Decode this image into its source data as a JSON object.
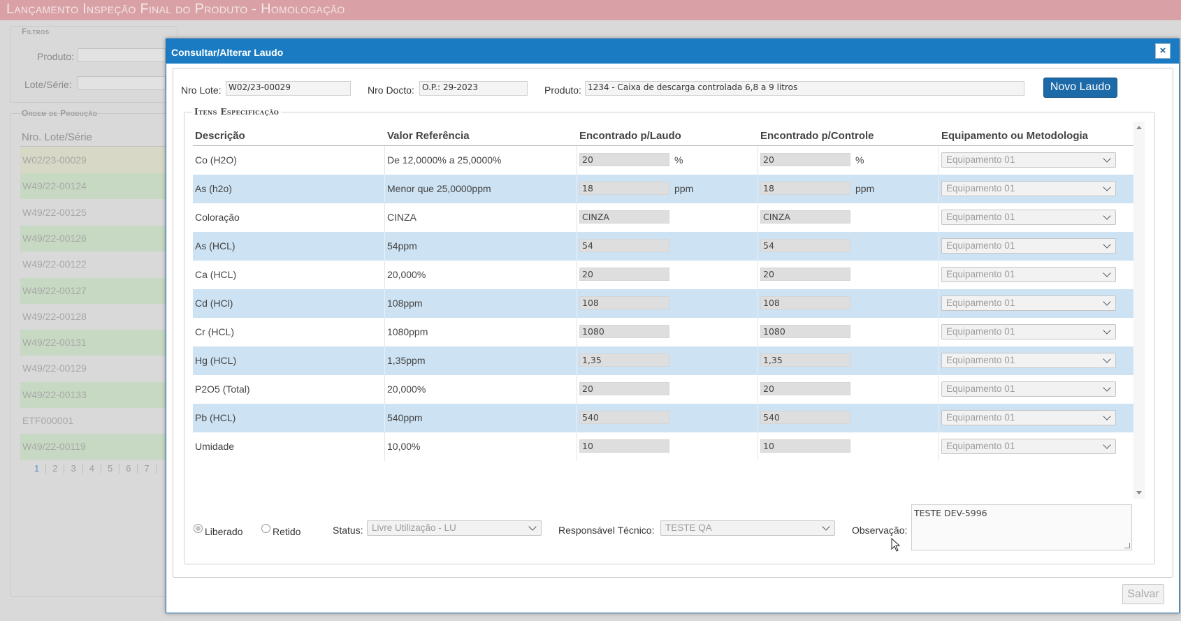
{
  "page": {
    "title": "Lançamento Inspeção Final do Produto  - Homologação",
    "filters_legend": "Filtros",
    "produto_label": "Produto:",
    "lote_label": "Lote/Série:",
    "op_legend": "Ordem de Produção",
    "op_column": "Nro. Lote/Série",
    "op_rows": [
      "W02/23-00029",
      "W49/22-00124",
      "W49/22-00125",
      "W49/22-00126",
      "W49/22-00122",
      "W49/22-00127",
      "W49/22-00128",
      "W49/22-00131",
      "W49/22-00129",
      "W49/22-00133",
      "ETF000001",
      "W49/22-00119"
    ],
    "pager": [
      "1",
      "2",
      "3",
      "4",
      "5",
      "6",
      "7"
    ]
  },
  "modal": {
    "title": "Consultar/Alterar Laudo",
    "close": "×",
    "nro_lote_label": "Nro Lote:",
    "nro_lote_value": "W02/23-00029",
    "nro_docto_label": "Nro Docto:",
    "nro_docto_value": "O.P.: 29-2023",
    "produto_label": "Produto:",
    "produto_value": "1234 - Caixa de descarga controlada 6,8 a 9 litros",
    "novo_laudo": "Novo Laudo",
    "spec_legend": "Itens Especificação",
    "columns": [
      "Descrição",
      "Valor Referência",
      "Encontrado p/Laudo",
      "Encontrado p/Controle",
      "Equipamento ou Metodologia"
    ],
    "rows": [
      {
        "descricao": "Co (H2O)",
        "referencia": "De 12,0000% a 25,0000%",
        "laudo": "20",
        "controle": "20",
        "unidade": "%",
        "equipamento": "Equipamento 01"
      },
      {
        "descricao": "As (h2o)",
        "referencia": "Menor que 25,0000ppm",
        "laudo": "18",
        "controle": "18",
        "unidade": "ppm",
        "equipamento": "Equipamento 01"
      },
      {
        "descricao": "Coloração",
        "referencia": "CINZA",
        "laudo": "CINZA",
        "controle": "CINZA",
        "unidade": "",
        "equipamento": "Equipamento 01"
      },
      {
        "descricao": "As (HCL)",
        "referencia": "54ppm",
        "laudo": "54",
        "controle": "54",
        "unidade": "",
        "equipamento": "Equipamento 01"
      },
      {
        "descricao": "Ca (HCL)",
        "referencia": "20,000%",
        "laudo": "20",
        "controle": "20",
        "unidade": "",
        "equipamento": "Equipamento 01"
      },
      {
        "descricao": "Cd (HCl)",
        "referencia": "108ppm",
        "laudo": "108",
        "controle": "108",
        "unidade": "",
        "equipamento": "Equipamento 01"
      },
      {
        "descricao": "Cr (HCL)",
        "referencia": "1080ppm",
        "laudo": "1080",
        "controle": "1080",
        "unidade": "",
        "equipamento": "Equipamento 01"
      },
      {
        "descricao": "Hg (HCL)",
        "referencia": "1,35ppm",
        "laudo": "1,35",
        "controle": "1,35",
        "unidade": "",
        "equipamento": "Equipamento 01"
      },
      {
        "descricao": "P2O5 (Total)",
        "referencia": "20,000%",
        "laudo": "20",
        "controle": "20",
        "unidade": "",
        "equipamento": "Equipamento 01"
      },
      {
        "descricao": "Pb (HCL)",
        "referencia": "540ppm",
        "laudo": "540",
        "controle": "540",
        "unidade": "",
        "equipamento": "Equipamento 01"
      },
      {
        "descricao": "Umidade",
        "referencia": "10,00%",
        "laudo": "10",
        "controle": "10",
        "unidade": "",
        "equipamento": "Equipamento 01"
      }
    ],
    "liberado_label": "Liberado",
    "retido_label": "Retido",
    "liberado_checked": true,
    "status_label": "Status:",
    "status_value": "Livre Utilização - LU",
    "responsavel_label": "Responsável Técnico:",
    "responsavel_value": "TESTE QA",
    "observacao_label": "Observação:",
    "observacao_value": "TESTE DEV-5996",
    "salvar": "Salvar"
  }
}
